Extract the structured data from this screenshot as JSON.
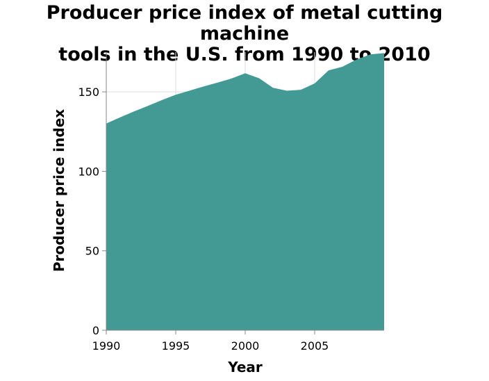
{
  "chart_data": {
    "type": "area",
    "title_lines": [
      "Producer price index of metal cutting machine",
      "tools in the U.S. from 1990 to 2010"
    ],
    "xlabel": "Year",
    "ylabel": "Producer price index",
    "x": [
      1990,
      1991,
      1992,
      1993,
      1994,
      1995,
      1996,
      1997,
      1998,
      1999,
      2000,
      2001,
      2002,
      2003,
      2004,
      2005,
      2006,
      2007,
      2008,
      2009,
      2010
    ],
    "values": [
      130.1,
      134.0,
      137.7,
      141.2,
      144.8,
      148.2,
      150.8,
      153.4,
      155.8,
      158.4,
      161.7,
      158.6,
      152.6,
      150.7,
      151.3,
      155.3,
      163.5,
      165.8,
      170.3,
      173.6,
      174.4
    ],
    "xlim": [
      1990,
      2010
    ],
    "ylim": [
      0,
      175
    ],
    "x_ticks": [
      1990,
      1995,
      2000,
      2005
    ],
    "y_ticks": [
      0,
      50,
      100,
      150
    ],
    "grid": true,
    "fill_color": "#439a94"
  }
}
